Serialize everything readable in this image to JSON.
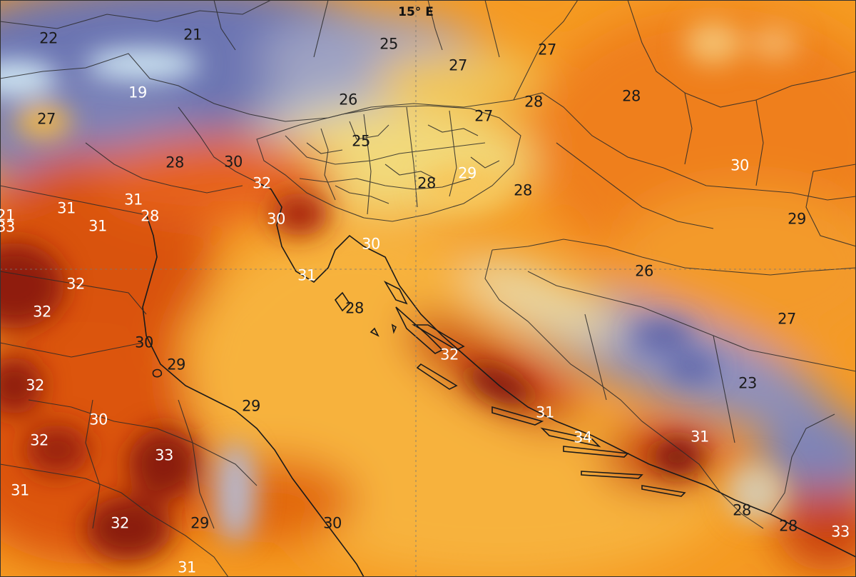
{
  "map": {
    "meridian_label": "15° E",
    "colors": {
      "sea": "#f7b23e",
      "warm": "#f59a22",
      "hot": "#e2580c",
      "very_hot": "#8a1d10",
      "cool": "#6a72b0",
      "cold": "#cfe6f2",
      "pale": "#f6e6a8"
    },
    "labels": [
      {
        "text": "22",
        "tone": "dark"
      },
      {
        "text": "21",
        "tone": "dark"
      },
      {
        "text": "25",
        "tone": "dark"
      },
      {
        "text": "27",
        "tone": "dark"
      },
      {
        "text": "27",
        "tone": "dark"
      },
      {
        "text": "28",
        "tone": "dark"
      },
      {
        "text": "19",
        "tone": "light"
      },
      {
        "text": "26",
        "tone": "dark"
      },
      {
        "text": "27",
        "tone": "dark"
      },
      {
        "text": "28",
        "tone": "dark"
      },
      {
        "text": "27",
        "tone": "dark"
      },
      {
        "text": "25",
        "tone": "dark"
      },
      {
        "text": "28",
        "tone": "dark"
      },
      {
        "text": "30",
        "tone": "dark"
      },
      {
        "text": "32",
        "tone": "light"
      },
      {
        "text": "29",
        "tone": "light"
      },
      {
        "text": "28",
        "tone": "dark"
      },
      {
        "text": "28",
        "tone": "dark"
      },
      {
        "text": "30",
        "tone": "light"
      },
      {
        "text": "31",
        "tone": "light"
      },
      {
        "text": "31",
        "tone": "light"
      },
      {
        "text": "31",
        "tone": "light"
      },
      {
        "text": "28",
        "tone": "light"
      },
      {
        "text": "30",
        "tone": "light"
      },
      {
        "text": "29",
        "tone": "dark"
      },
      {
        "text": "30",
        "tone": "light"
      },
      {
        "text": "31",
        "tone": "light"
      },
      {
        "text": "26",
        "tone": "dark"
      },
      {
        "text": "32",
        "tone": "light"
      },
      {
        "text": "32",
        "tone": "light"
      },
      {
        "text": "28",
        "tone": "dark"
      },
      {
        "text": "27",
        "tone": "dark"
      },
      {
        "text": "30",
        "tone": "dark"
      },
      {
        "text": "32",
        "tone": "light"
      },
      {
        "text": "29",
        "tone": "dark"
      },
      {
        "text": "32",
        "tone": "light"
      },
      {
        "text": "23",
        "tone": "dark"
      },
      {
        "text": "30",
        "tone": "light"
      },
      {
        "text": "29",
        "tone": "dark"
      },
      {
        "text": "31",
        "tone": "light"
      },
      {
        "text": "32",
        "tone": "light"
      },
      {
        "text": "33",
        "tone": "light"
      },
      {
        "text": "34",
        "tone": "light"
      },
      {
        "text": "31",
        "tone": "light"
      },
      {
        "text": "31",
        "tone": "light"
      },
      {
        "text": "32",
        "tone": "light"
      },
      {
        "text": "29",
        "tone": "dark"
      },
      {
        "text": "30",
        "tone": "dark"
      },
      {
        "text": "28",
        "tone": "dark"
      },
      {
        "text": "28",
        "tone": "dark"
      },
      {
        "text": "33",
        "tone": "light"
      },
      {
        "text": "31",
        "tone": "light"
      },
      {
        "text": "21",
        "tone": "light"
      },
      {
        "text": "33",
        "tone": "light"
      }
    ]
  }
}
